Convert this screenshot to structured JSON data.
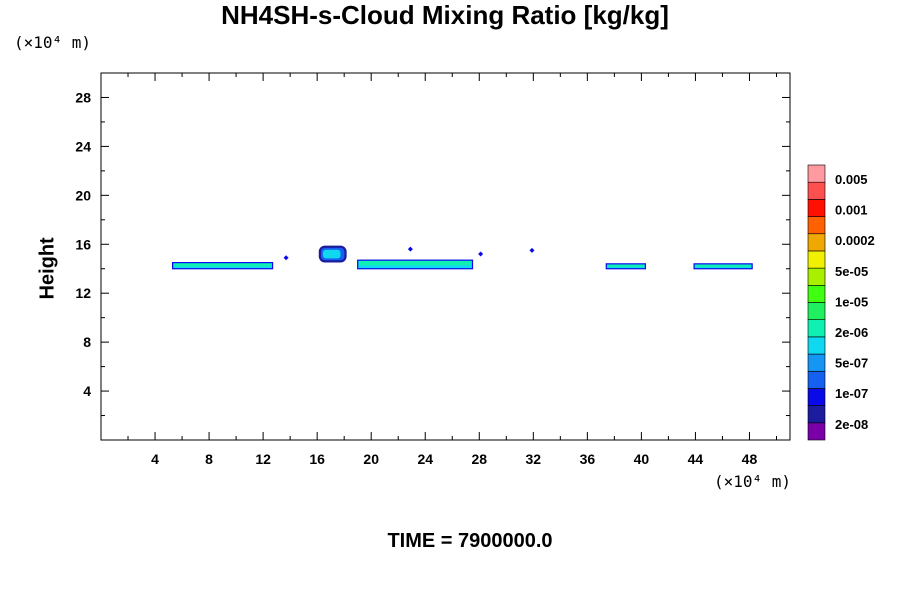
{
  "chart_data": {
    "type": "heatmap",
    "title": "NH4SH-s-Cloud Mixing Ratio [kg/kg]",
    "ylabel": "Height",
    "y_unit": "(×10⁴ m)",
    "x_unit": "(×10⁴ m)",
    "footer": "TIME = 7900000.0",
    "xlim": [
      0,
      51
    ],
    "ylim": [
      0,
      30
    ],
    "x_ticks": [
      "4",
      "8",
      "12",
      "16",
      "20",
      "24",
      "28",
      "32",
      "36",
      "40",
      "44",
      "48"
    ],
    "y_ticks": [
      "4",
      "8",
      "12",
      "16",
      "20",
      "24",
      "28"
    ],
    "colorbar": {
      "labels": [
        "0.005",
        "0.001",
        "0.0002",
        "5e-05",
        "1e-05",
        "2e-06",
        "5e-07",
        "1e-07",
        "2e-08"
      ],
      "colors": [
        "#7a00a8",
        "#1c1c9e",
        "#0a0ae8",
        "#1560f0",
        "#1496f2",
        "#10d8f0",
        "#10f0b0",
        "#20f060",
        "#40ff10",
        "#a8f000",
        "#f0f000",
        "#f0a800",
        "#ff6000",
        "#ff1000",
        "#ff5050",
        "#ff9aa0"
      ]
    },
    "cloud_bands": [
      {
        "x": [
          5.3,
          12.7
        ],
        "y": [
          14.0,
          14.5
        ],
        "level": "2e-06"
      },
      {
        "x": [
          16.2,
          18.1
        ],
        "y": [
          14.6,
          15.8
        ],
        "level": "1e-07"
      },
      {
        "x": [
          19.0,
          27.5
        ],
        "y": [
          14.0,
          14.7
        ],
        "level": "2e-06"
      },
      {
        "x": [
          37.4,
          40.3
        ],
        "y": [
          14.0,
          14.4
        ],
        "level": "2e-06"
      },
      {
        "x": [
          43.9,
          48.2
        ],
        "y": [
          14.0,
          14.4
        ],
        "level": "2e-06"
      }
    ],
    "cloud_dots": [
      {
        "x": 13.7,
        "y": 14.9
      },
      {
        "x": 28.1,
        "y": 15.2
      },
      {
        "x": 31.9,
        "y": 15.5
      },
      {
        "x": 22.9,
        "y": 15.6
      }
    ]
  }
}
